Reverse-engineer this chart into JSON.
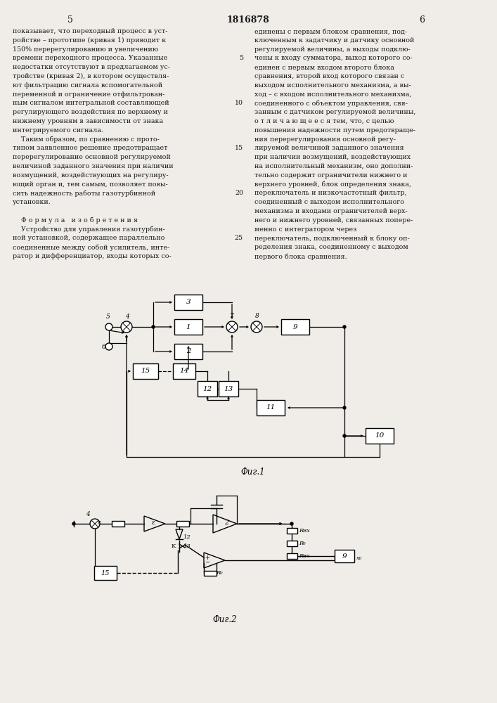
{
  "bg_color": "#f0ede8",
  "text_color": "#1a1a1a",
  "page_title": "1816878",
  "page_left": "5",
  "page_right": "6",
  "fig1_label": "Фиг.1",
  "fig2_label": "Фиг.2",
  "left_col_lines": [
    "показывает, что переходный процесс в уст-",
    "ройстве – прототипе (кривая 1) приводит к",
    "150% перерегулированию и увеличению",
    "времени переходного процесса. Указанные",
    "недостатки отсутствуют в предлагаемом ус-",
    "тройстве (кривая 2), в котором осуществля-",
    "ют фильтрацию сигнала вспомогательной",
    "переменной и ограничение отфильтрован-",
    "ным сигналом интегральной составляющей",
    "регулирующего воздействия по верхнему и",
    "нижнему уровням в зависимости от знака",
    "интегрируемого сигнала.",
    "    Таким образом, по сравнению с прото-",
    "типом заявленное решение предотвращает",
    "перерегулирование основной регулируемой",
    "величиной заданного значения при наличии",
    "возмущений, воздействующих на регулиру-",
    "ющий орган и, тем самым, позволяет повы-",
    "сить надежность работы газотурбинной",
    "установки.",
    "",
    "    Ф о р м у л а   и з о б р е т е н и я",
    "    Устройство для управления газотурбин-",
    "ной установкой, содержащее параллельно",
    "соединенные между собой усилитель, инте-",
    "ратор и дифференциатор, входы которых со-"
  ],
  "right_col_lines": [
    "единены с первым блоком сравнения, под-",
    "ключенным к задатчику и датчику основной",
    "регулируемой величины, а выходы подклю-",
    "чены к входу сумматора, выход которого со-",
    "единен с первым входом второго блока",
    "сравнения, второй вход которого связан с",
    "выходом исполнительного механизма, а вы-",
    "ход – с входом исполнительного механизма,",
    "соединенного с объектом управления, свя-",
    "занным с датчиком регулируемой величины,",
    "о т л и ч а ю щ е е с я тем, что, с целью",
    "повышения надежности путем предотвраще-",
    "ния перерегулирования основной регу-",
    "лируемой величиной заданного значения",
    "при наличии возмущений, воздействующих",
    "на исполнительный механизм, оно дополни-",
    "тельно содержит ограничители нижнего и",
    "верхнего уровней, блок определения знака,",
    "переключатель и низкочастотный фильтр,",
    "соединенный с выходом исполнительного",
    "механизма и входами ограничителей верх-",
    "него и нижнего уровней, связанных попере-",
    "менно с интегратором через",
    "переключатель, подключенный к блоку оп-",
    "ределения знака, соединенному с выходом",
    "первого блока сравнения."
  ],
  "line_numbers": {
    "4": 5,
    "9": 10,
    "14": 15,
    "19": 20,
    "24": 25
  }
}
